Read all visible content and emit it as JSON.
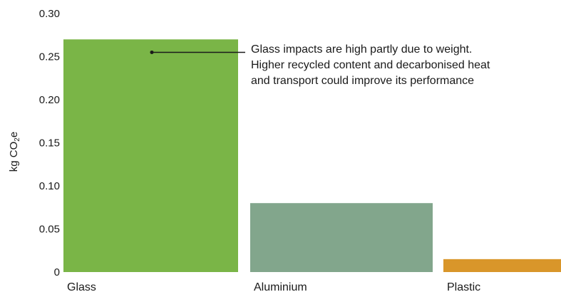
{
  "chart_data": {
    "type": "bar",
    "categories": [
      "Glass",
      "Aluminium",
      "Plastic"
    ],
    "values": [
      0.27,
      0.08,
      0.015
    ],
    "colors": [
      "#7ab547",
      "#82a68c",
      "#d9962a"
    ],
    "ylabel": "kg CO",
    "ylabel_subscript": "2",
    "ylabel_suffix": "e",
    "ylim": [
      0,
      0.3
    ],
    "yticks": [
      {
        "value": 0,
        "label": "0"
      },
      {
        "value": 0.05,
        "label": "0.05"
      },
      {
        "value": 0.1,
        "label": "0.10"
      },
      {
        "value": 0.15,
        "label": "0.15"
      },
      {
        "value": 0.2,
        "label": "0.20"
      },
      {
        "value": 0.25,
        "label": "0.25"
      },
      {
        "value": 0.3,
        "label": "0.30"
      }
    ],
    "grid": false,
    "annotation": {
      "target_category": "Glass",
      "target_value": 0.255,
      "lines": [
        "Glass impacts are high partly due to weight.",
        "Higher recycled content and decarbonised heat",
        "and transport could improve its performance"
      ]
    }
  }
}
